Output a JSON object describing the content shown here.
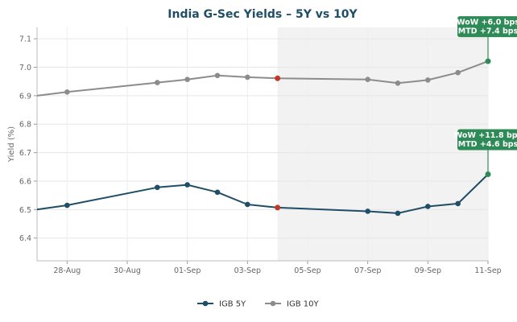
{
  "chart_data": {
    "type": "line",
    "title": "India G-Sec Yields – 5Y vs 10Y",
    "xlabel": "",
    "ylabel": "Yield (%)",
    "ylim": [
      6.32,
      7.14
    ],
    "xlim": [
      "2025-08-27",
      "2025-09-11"
    ],
    "yticks": [
      6.4,
      6.5,
      6.6,
      6.7,
      6.8,
      6.9,
      7.0,
      7.1
    ],
    "xticks": [
      {
        "date": "2025-08-28",
        "label": "28-Aug"
      },
      {
        "date": "2025-08-30",
        "label": "30-Aug"
      },
      {
        "date": "2025-09-01",
        "label": "01-Sep"
      },
      {
        "date": "2025-09-03",
        "label": "03-Sep"
      },
      {
        "date": "2025-09-05",
        "label": "05-Sep"
      },
      {
        "date": "2025-09-07",
        "label": "07-Sep"
      },
      {
        "date": "2025-09-09",
        "label": "09-Sep"
      },
      {
        "date": "2025-09-11",
        "label": "11-Sep"
      }
    ],
    "grid": true,
    "legend_position": "bottom-center",
    "shaded_region": {
      "from": "2025-09-04",
      "to": "2025-09-11",
      "color": "#f2f2f2"
    },
    "series": [
      {
        "name": "IGB 5Y",
        "color": "#1f4e66",
        "x": [
          "2025-08-27",
          "2025-08-28",
          "2025-08-31",
          "2025-09-01",
          "2025-09-02",
          "2025-09-03",
          "2025-09-04",
          "2025-09-07",
          "2025-09-08",
          "2025-09-09",
          "2025-09-10",
          "2025-09-11"
        ],
        "values": [
          6.5,
          6.515,
          6.578,
          6.587,
          6.561,
          6.518,
          6.507,
          6.494,
          6.487,
          6.511,
          6.521,
          6.624
        ]
      },
      {
        "name": "IGB 10Y",
        "color": "#8c8c8c",
        "x": [
          "2025-08-27",
          "2025-08-28",
          "2025-08-31",
          "2025-09-01",
          "2025-09-02",
          "2025-09-03",
          "2025-09-04",
          "2025-09-07",
          "2025-09-08",
          "2025-09-09",
          "2025-09-10",
          "2025-09-11"
        ],
        "values": [
          6.9,
          6.913,
          6.946,
          6.957,
          6.971,
          6.965,
          6.961,
          6.957,
          6.944,
          6.955,
          6.981,
          7.021
        ]
      }
    ],
    "highlight_points": [
      {
        "series": "IGB 5Y",
        "x": "2025-09-04",
        "y": 6.507,
        "color": "#c0392b"
      },
      {
        "series": "IGB 10Y",
        "x": "2025-09-04",
        "y": 6.961,
        "color": "#c0392b"
      },
      {
        "series": "IGB 5Y",
        "x": "2025-09-11",
        "y": 6.624,
        "color": "#2e8b57"
      },
      {
        "series": "IGB 10Y",
        "x": "2025-09-11",
        "y": 7.021,
        "color": "#2e8b57"
      }
    ],
    "annotations": [
      {
        "series": "IGB 10Y",
        "x": "2025-09-11",
        "y": 7.021,
        "lines": [
          "WoW +6.0 bps",
          "MTD +7.4 bps"
        ],
        "color": "#2e8b57"
      },
      {
        "series": "IGB 5Y",
        "x": "2025-09-11",
        "y": 6.624,
        "lines": [
          "WoW +11.8 bps",
          "MTD +4.6 bps"
        ],
        "color": "#2e8b57"
      }
    ]
  }
}
